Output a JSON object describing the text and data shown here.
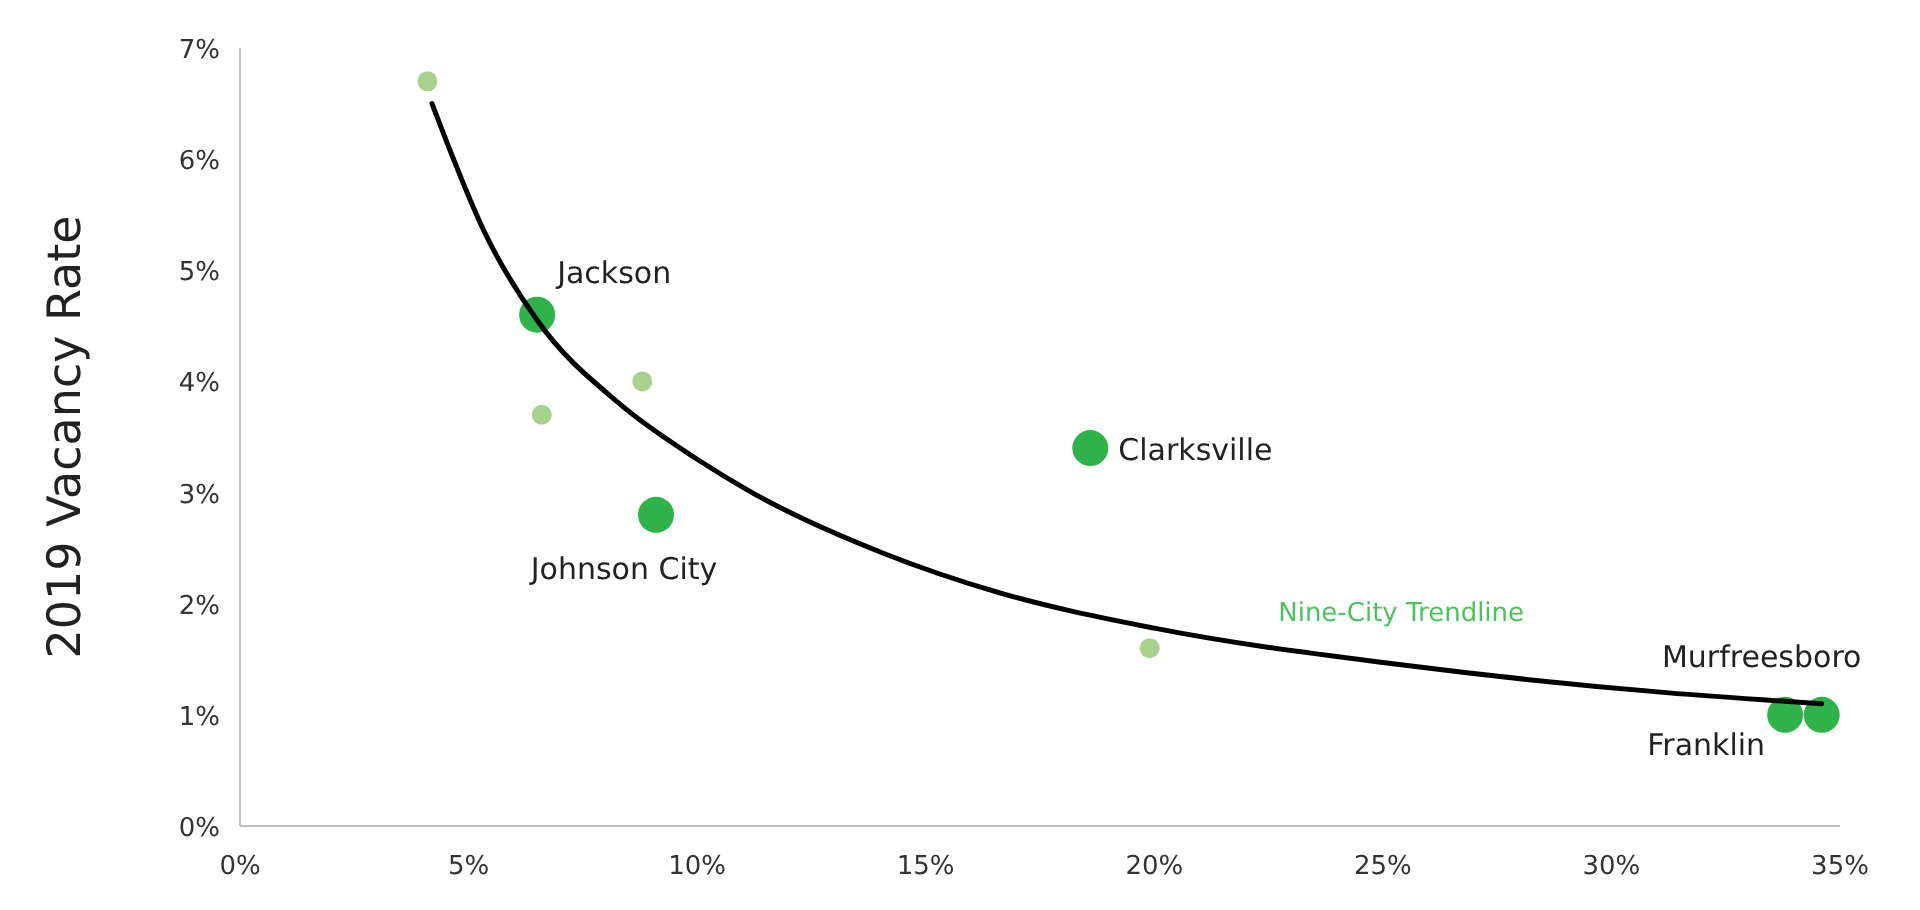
{
  "chart_data": {
    "type": "scatter",
    "ylabel": "2019 Vacancy Rate",
    "xlim": [
      0,
      35
    ],
    "ylim": [
      0,
      7
    ],
    "xticks": [
      {
        "value": 0,
        "label": "0%"
      },
      {
        "value": 5,
        "label": "5%"
      },
      {
        "value": 10,
        "label": "10%"
      },
      {
        "value": 15,
        "label": "15%"
      },
      {
        "value": 20,
        "label": "20%"
      },
      {
        "value": 25,
        "label": "25%"
      },
      {
        "value": 30,
        "label": "30%"
      },
      {
        "value": 35,
        "label": "35%"
      }
    ],
    "yticks": [
      {
        "value": 0,
        "label": "0%"
      },
      {
        "value": 1,
        "label": "1%"
      },
      {
        "value": 2,
        "label": "2%"
      },
      {
        "value": 3,
        "label": "3%"
      },
      {
        "value": 4,
        "label": "4%"
      },
      {
        "value": 5,
        "label": "5%"
      },
      {
        "value": 6,
        "label": "6%"
      },
      {
        "value": 7,
        "label": "7%"
      }
    ],
    "grid": false,
    "series": [
      {
        "type": "line",
        "name": "Nine-City Trendline",
        "color": "#000000",
        "marker": "none",
        "x": [
          4.2,
          5.4,
          6.5,
          8.3,
          10,
          11.2,
          14.1,
          16.6,
          20,
          25.4,
          31.2,
          34.6
        ],
        "values": [
          6.5,
          5.3,
          4.55,
          3.8,
          3.3,
          3.0,
          2.45,
          2.1,
          1.78,
          1.45,
          1.2,
          1.1
        ]
      },
      {
        "color": "#a9d18e",
        "marker": "circle",
        "x": [
          4.1,
          6.6,
          8.8,
          19.9
        ],
        "values": [
          6.7,
          3.7,
          4.0,
          1.6
        ]
      },
      {
        "color": "#2eb24a",
        "marker": "circle",
        "x": [
          6.5,
          9.1,
          18.6,
          33.8,
          34.6
        ],
        "values": [
          4.6,
          2.8,
          3.4,
          1.0,
          1.0
        ]
      }
    ],
    "annotations": [
      {
        "text": "Jackson",
        "x": 6.5,
        "y": 4.6
      },
      {
        "text": "Johnson City",
        "x": 9.1,
        "y": 2.8
      },
      {
        "text": "Clarksville",
        "x": 18.6,
        "y": 3.4
      },
      {
        "text": "Murfreesboro",
        "x": 34.6,
        "y": 1.0
      },
      {
        "text": "Franklin",
        "x": 33.8,
        "y": 1.0
      }
    ]
  }
}
